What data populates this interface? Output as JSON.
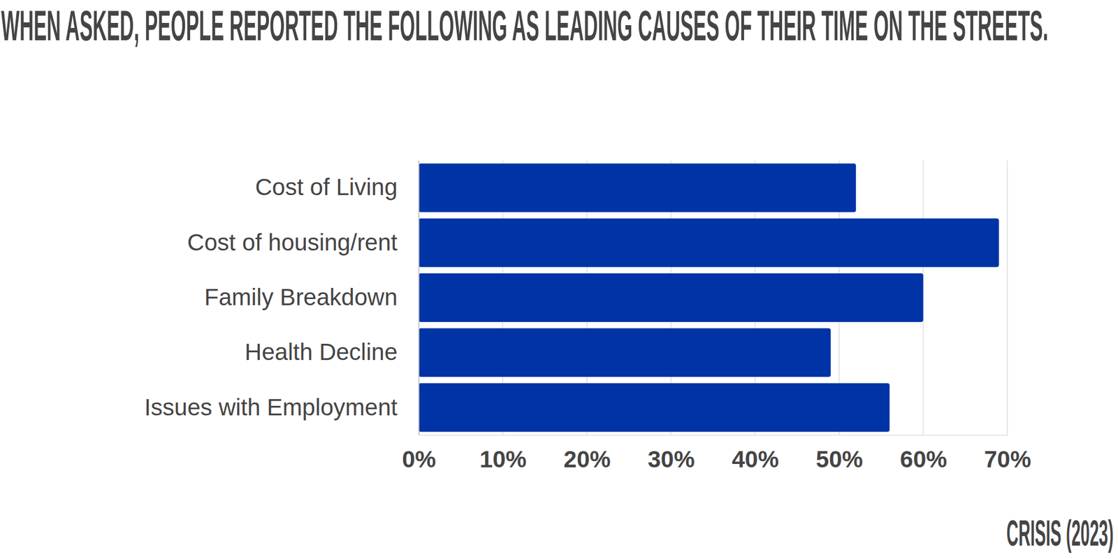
{
  "chart_data": {
    "type": "bar",
    "orientation": "horizontal",
    "title": "WHEN ASKED, PEOPLE REPORTED THE FOLLOWING AS LEADING CAUSES OF THEIR TIME ON THE STREETS.",
    "source": "CRISIS (2023)",
    "categories": [
      "Cost of Living",
      "Cost of housing/rent",
      "Family Breakdown",
      "Health Decline",
      "Issues with Employment"
    ],
    "values": [
      52,
      69,
      60,
      49,
      56
    ],
    "color": "#0033a6",
    "xlim": [
      0,
      70
    ],
    "xticks": [
      {
        "value": 0,
        "label": "0%"
      },
      {
        "value": 10,
        "label": "10%"
      },
      {
        "value": 20,
        "label": "20%"
      },
      {
        "value": 30,
        "label": "30%"
      },
      {
        "value": 40,
        "label": "40%"
      },
      {
        "value": 50,
        "label": "50%"
      },
      {
        "value": 60,
        "label": "60%"
      },
      {
        "value": 70,
        "label": "70%"
      }
    ],
    "grid": true
  }
}
